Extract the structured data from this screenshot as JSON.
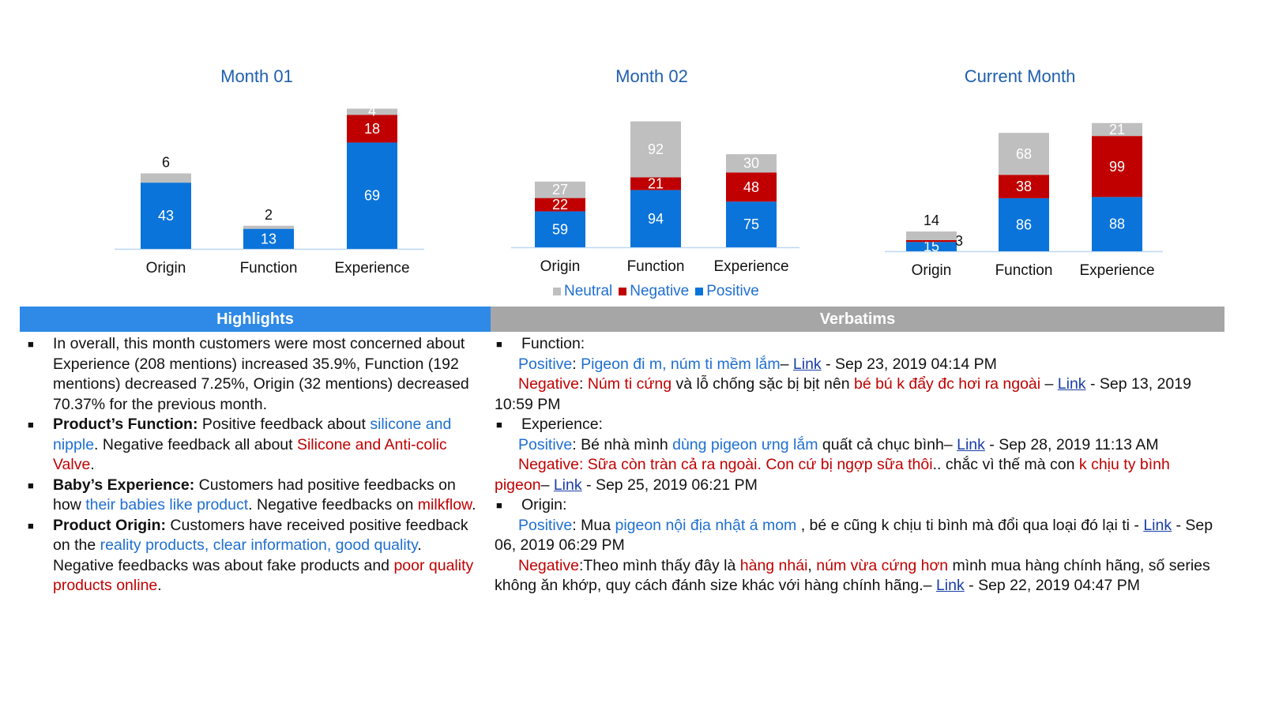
{
  "colors": {
    "positive": "#0a74da",
    "negative": "#c00000",
    "neutral": "#bfbfbf",
    "title": "#1f5fae",
    "highlight_header": "#2e8ae6",
    "verbatim_header": "#a6a6a6"
  },
  "chart_data": [
    {
      "type": "bar",
      "stacked": true,
      "title": "Month 01",
      "categories": [
        "Origin",
        "Function",
        "Experience"
      ],
      "series": [
        {
          "name": "Positive",
          "values": [
            43,
            13,
            69
          ]
        },
        {
          "name": "Negative",
          "values": [
            0,
            0,
            18
          ]
        },
        {
          "name": "Neutral",
          "values": [
            6,
            2,
            4
          ]
        }
      ]
    },
    {
      "type": "bar",
      "stacked": true,
      "title": "Month 02",
      "categories": [
        "Origin",
        "Function",
        "Experience"
      ],
      "series": [
        {
          "name": "Positive",
          "values": [
            59,
            94,
            75
          ]
        },
        {
          "name": "Negative",
          "values": [
            22,
            21,
            48
          ]
        },
        {
          "name": "Neutral",
          "values": [
            27,
            92,
            30
          ]
        }
      ]
    },
    {
      "type": "bar",
      "stacked": true,
      "title": "Current Month",
      "categories": [
        "Origin",
        "Function",
        "Experience"
      ],
      "series": [
        {
          "name": "Positive",
          "values": [
            15,
            86,
            88
          ]
        },
        {
          "name": "Negative",
          "values": [
            3,
            38,
            99
          ]
        },
        {
          "name": "Neutral",
          "values": [
            14,
            68,
            21
          ]
        }
      ]
    }
  ],
  "legend": [
    "Neutral",
    "Negative",
    "Positive"
  ],
  "highlights": {
    "header": "Highlights",
    "paragraphs": [
      [
        {
          "t": "In overall, this month customers were most concerned about Experience (208 mentions) increased 35.9%, Function (192 mentions) decreased 7.25%, Origin (32 mentions) decreased 70.37% for the previous month."
        }
      ],
      [
        {
          "t": "Product’s Function: ",
          "c": "bold"
        },
        {
          "t": "Positive feedback about "
        },
        {
          "t": "silicone and nipple",
          "c": "blue"
        },
        {
          "t": ". Negative feedback all about "
        },
        {
          "t": "Silicone and Anti-colic Valve",
          "c": "red"
        },
        {
          "t": "."
        }
      ],
      [
        {
          "t": "Baby’s Experience: ",
          "c": "bold"
        },
        {
          "t": "Customers had positive feedbacks on how "
        },
        {
          "t": "their babies like product",
          "c": "blue"
        },
        {
          "t": ". Negative feedbacks on "
        },
        {
          "t": "milkflow",
          "c": "red"
        },
        {
          "t": "."
        }
      ],
      [
        {
          "t": "Product Origin: ",
          "c": "bold"
        },
        {
          "t": "Customers have received positive feedback on the "
        },
        {
          "t": "reality products, clear information, good quality",
          "c": "blue"
        },
        {
          "t": ". Negative feedbacks was about fake products and "
        },
        {
          "t": "poor quality products online",
          "c": "red"
        },
        {
          "t": "."
        }
      ]
    ]
  },
  "verbatims": {
    "header": "Verbatims",
    "paragraphs": [
      {
        "kind": "head",
        "runs": [
          {
            "t": "Function:"
          }
        ]
      },
      {
        "kind": "ind",
        "runs": [
          {
            "t": "Positive",
            "c": "blue"
          },
          {
            "t": ": "
          },
          {
            "t": "Pigeon đi m, núm ti mềm lắm",
            "c": "blue"
          },
          {
            "t": "– "
          },
          {
            "t": "Link",
            "c": "link"
          },
          {
            "t": " - Sep 23, 2019 04:14 PM"
          }
        ]
      },
      {
        "kind": "ind",
        "runs": [
          {
            "t": "Negative",
            "c": "red"
          },
          {
            "t": ": "
          },
          {
            "t": "Núm ti cứng",
            "c": "red"
          },
          {
            "t": " và lỗ chống sặc bị bịt nên "
          },
          {
            "t": "bé bú k đẩy đc hơi ra ngoài",
            "c": "red"
          },
          {
            "t": " – "
          },
          {
            "t": "Link",
            "c": "link"
          },
          {
            "t": " -  Sep 13, 2019 10:59 PM"
          }
        ]
      },
      {
        "kind": "head",
        "runs": [
          {
            "t": "Experience:"
          }
        ]
      },
      {
        "kind": "ind",
        "runs": [
          {
            "t": "Positive",
            "c": "blue"
          },
          {
            "t": ": Bé nhà mình "
          },
          {
            "t": "dùng pigeon ưng lắm",
            "c": "blue"
          },
          {
            "t": " quất cả chục bình– "
          },
          {
            "t": "Link",
            "c": "link"
          },
          {
            "t": " - Sep 28, 2019 11:13 AM"
          }
        ]
      },
      {
        "kind": "ind",
        "runs": [
          {
            "t": "Negative: Sữa còn tràn cả ra ngoài. Con cứ bị ngợp sữa thôi",
            "c": "red"
          },
          {
            "t": ".. chắc vì thế mà con "
          },
          {
            "t": "k chịu ty bình pigeon",
            "c": "red"
          },
          {
            "t": "– "
          },
          {
            "t": "Link",
            "c": "link"
          },
          {
            "t": " - Sep 25, 2019 06:21 PM"
          }
        ]
      },
      {
        "kind": "head",
        "runs": [
          {
            "t": "Origin:"
          }
        ]
      },
      {
        "kind": "ind",
        "runs": [
          {
            "t": " Positive",
            "c": "blue"
          },
          {
            "t": ": Mua "
          },
          {
            "t": "pigeon nội địa nhật á mom",
            "c": "blue"
          },
          {
            "t": " , bé e cũng k chịu ti bình mà đổi qua loại đó lại ti - "
          },
          {
            "t": "Link",
            "c": "link"
          },
          {
            "t": " - Sep 06, 2019 06:29 PM"
          }
        ]
      },
      {
        "kind": "ind",
        "runs": [
          {
            "t": " Negative",
            "c": "red"
          },
          {
            "t": ":Theo mình thấy đây là "
          },
          {
            "t": "hàng nhái",
            "c": "red"
          },
          {
            "t": ", "
          },
          {
            "t": "núm vừa cứng hơn",
            "c": "red"
          },
          {
            "t": " mình mua hàng chính hãng, số series không ăn khớp, quy cách đánh size khác với hàng chính hãng.– "
          },
          {
            "t": "Link",
            "c": "link"
          },
          {
            "t": " -  Sep 22, 2019 04:47 PM"
          }
        ]
      }
    ]
  }
}
